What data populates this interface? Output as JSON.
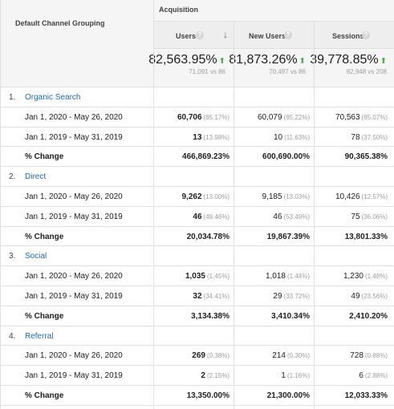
{
  "header": {
    "dimension": "Default Channel Grouping",
    "section": "Acquisition",
    "columns": [
      "Users",
      "New Users",
      "Sessions"
    ],
    "help_icon": "?",
    "sort_icon": "↓"
  },
  "totals": [
    {
      "change": "82,563.95%",
      "compare": "71,091 vs 86"
    },
    {
      "change": "81,873.26%",
      "compare": "70,497 vs 86"
    },
    {
      "change": "39,778.85%",
      "compare": "82,948 vs 208"
    }
  ],
  "up_icon": "⬆",
  "groups": [
    {
      "num": "1.",
      "name": "Organic Search",
      "rows": [
        {
          "label": "Jan 1, 2020 - May 26, 2020",
          "cells": [
            [
              "60,706",
              "(85.17%)"
            ],
            [
              "60,079",
              "(85.22%)"
            ],
            [
              "70,563",
              "(85.07%)"
            ]
          ]
        },
        {
          "label": "Jan 1, 2019 - May 31, 2019",
          "cells": [
            [
              "13",
              "(13.98%)"
            ],
            [
              "10",
              "(11.63%)"
            ],
            [
              "78",
              "(37.50%)"
            ]
          ]
        },
        {
          "label": "% Change",
          "cells": [
            [
              "466,869.23%",
              ""
            ],
            [
              "600,690.00%",
              ""
            ],
            [
              "90,365.38%",
              ""
            ]
          ]
        }
      ]
    },
    {
      "num": "2.",
      "name": "Direct",
      "rows": [
        {
          "label": "Jan 1, 2020 - May 26, 2020",
          "cells": [
            [
              "9,262",
              "(13.00%)"
            ],
            [
              "9,185",
              "(13.03%)"
            ],
            [
              "10,426",
              "(12.57%)"
            ]
          ]
        },
        {
          "label": "Jan 1, 2019 - May 31, 2019",
          "cells": [
            [
              "46",
              "(49.46%)"
            ],
            [
              "46",
              "(53.49%)"
            ],
            [
              "75",
              "(36.06%)"
            ]
          ]
        },
        {
          "label": "% Change",
          "cells": [
            [
              "20,034.78%",
              ""
            ],
            [
              "19,867.39%",
              ""
            ],
            [
              "13,801.33%",
              ""
            ]
          ]
        }
      ]
    },
    {
      "num": "3.",
      "name": "Social",
      "rows": [
        {
          "label": "Jan 1, 2020 - May 26, 2020",
          "cells": [
            [
              "1,035",
              "(1.45%)"
            ],
            [
              "1,018",
              "(1.44%)"
            ],
            [
              "1,230",
              "(1.48%)"
            ]
          ]
        },
        {
          "label": "Jan 1, 2019 - May 31, 2019",
          "cells": [
            [
              "32",
              "(34.41%)"
            ],
            [
              "29",
              "(33.72%)"
            ],
            [
              "49",
              "(23.56%)"
            ]
          ]
        },
        {
          "label": "% Change",
          "cells": [
            [
              "3,134.38%",
              ""
            ],
            [
              "3,410.34%",
              ""
            ],
            [
              "2,410.20%",
              ""
            ]
          ]
        }
      ]
    },
    {
      "num": "4.",
      "name": "Referral",
      "rows": [
        {
          "label": "Jan 1, 2020 - May 26, 2020",
          "cells": [
            [
              "269",
              "(0.38%)"
            ],
            [
              "214",
              "(0.30%)"
            ],
            [
              "728",
              "(0.88%)"
            ]
          ]
        },
        {
          "label": "Jan 1, 2019 - May 31, 2019",
          "cells": [
            [
              "2",
              "(2.15%)"
            ],
            [
              "1",
              "(1.16%)"
            ],
            [
              "6",
              "(2.88%)"
            ]
          ]
        },
        {
          "label": "% Change",
          "cells": [
            [
              "13,350.00%",
              ""
            ],
            [
              "21,300.00%",
              ""
            ],
            [
              "12,033.33%",
              ""
            ]
          ]
        }
      ]
    }
  ]
}
